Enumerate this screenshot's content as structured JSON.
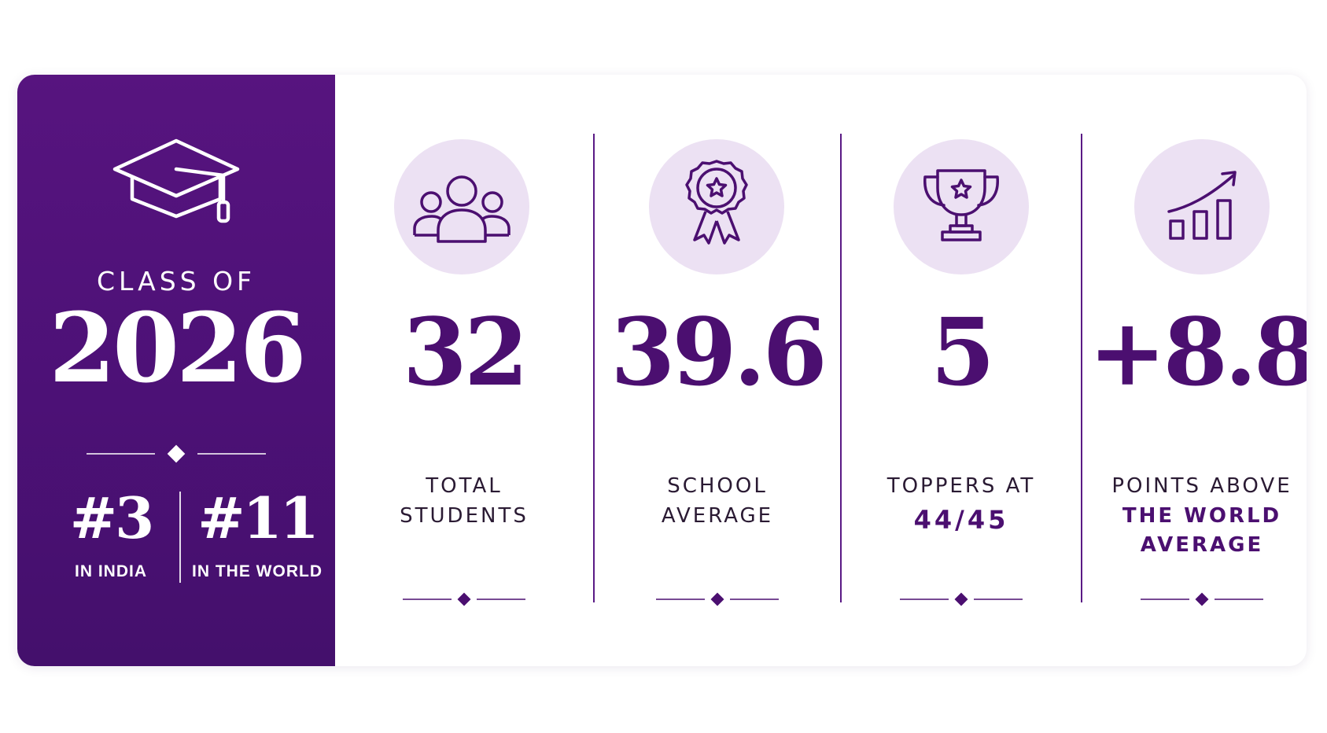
{
  "hero": {
    "icon": "graduation-cap-icon",
    "class_of": "CLASS OF",
    "year": "2026",
    "rank_india": {
      "value": "#3",
      "label": "IN INDIA"
    },
    "rank_world": {
      "value": "#11",
      "label": "IN THE WORLD"
    }
  },
  "stats": [
    {
      "icon": "people-icon",
      "value": "32",
      "label_lines": [
        "TOTAL",
        "STUDENTS"
      ]
    },
    {
      "icon": "award-badge-icon",
      "value": "39.6",
      "label_lines": [
        "SCHOOL",
        "AVERAGE"
      ]
    },
    {
      "icon": "trophy-icon",
      "value": "5",
      "label_lines": [
        "TOPPERS AT"
      ],
      "highlight": "44/45"
    },
    {
      "icon": "growth-chart-icon",
      "value": "+8.8",
      "label_lines": [
        "POINTS ABOVE"
      ],
      "highlight_lines": [
        "THE WORLD",
        "AVERAGE"
      ]
    }
  ],
  "colors": {
    "brand_purple": "#4b0f70",
    "panel_top": "#57147f",
    "panel_bottom": "#44106c",
    "icon_bg": "#ece1f3"
  }
}
